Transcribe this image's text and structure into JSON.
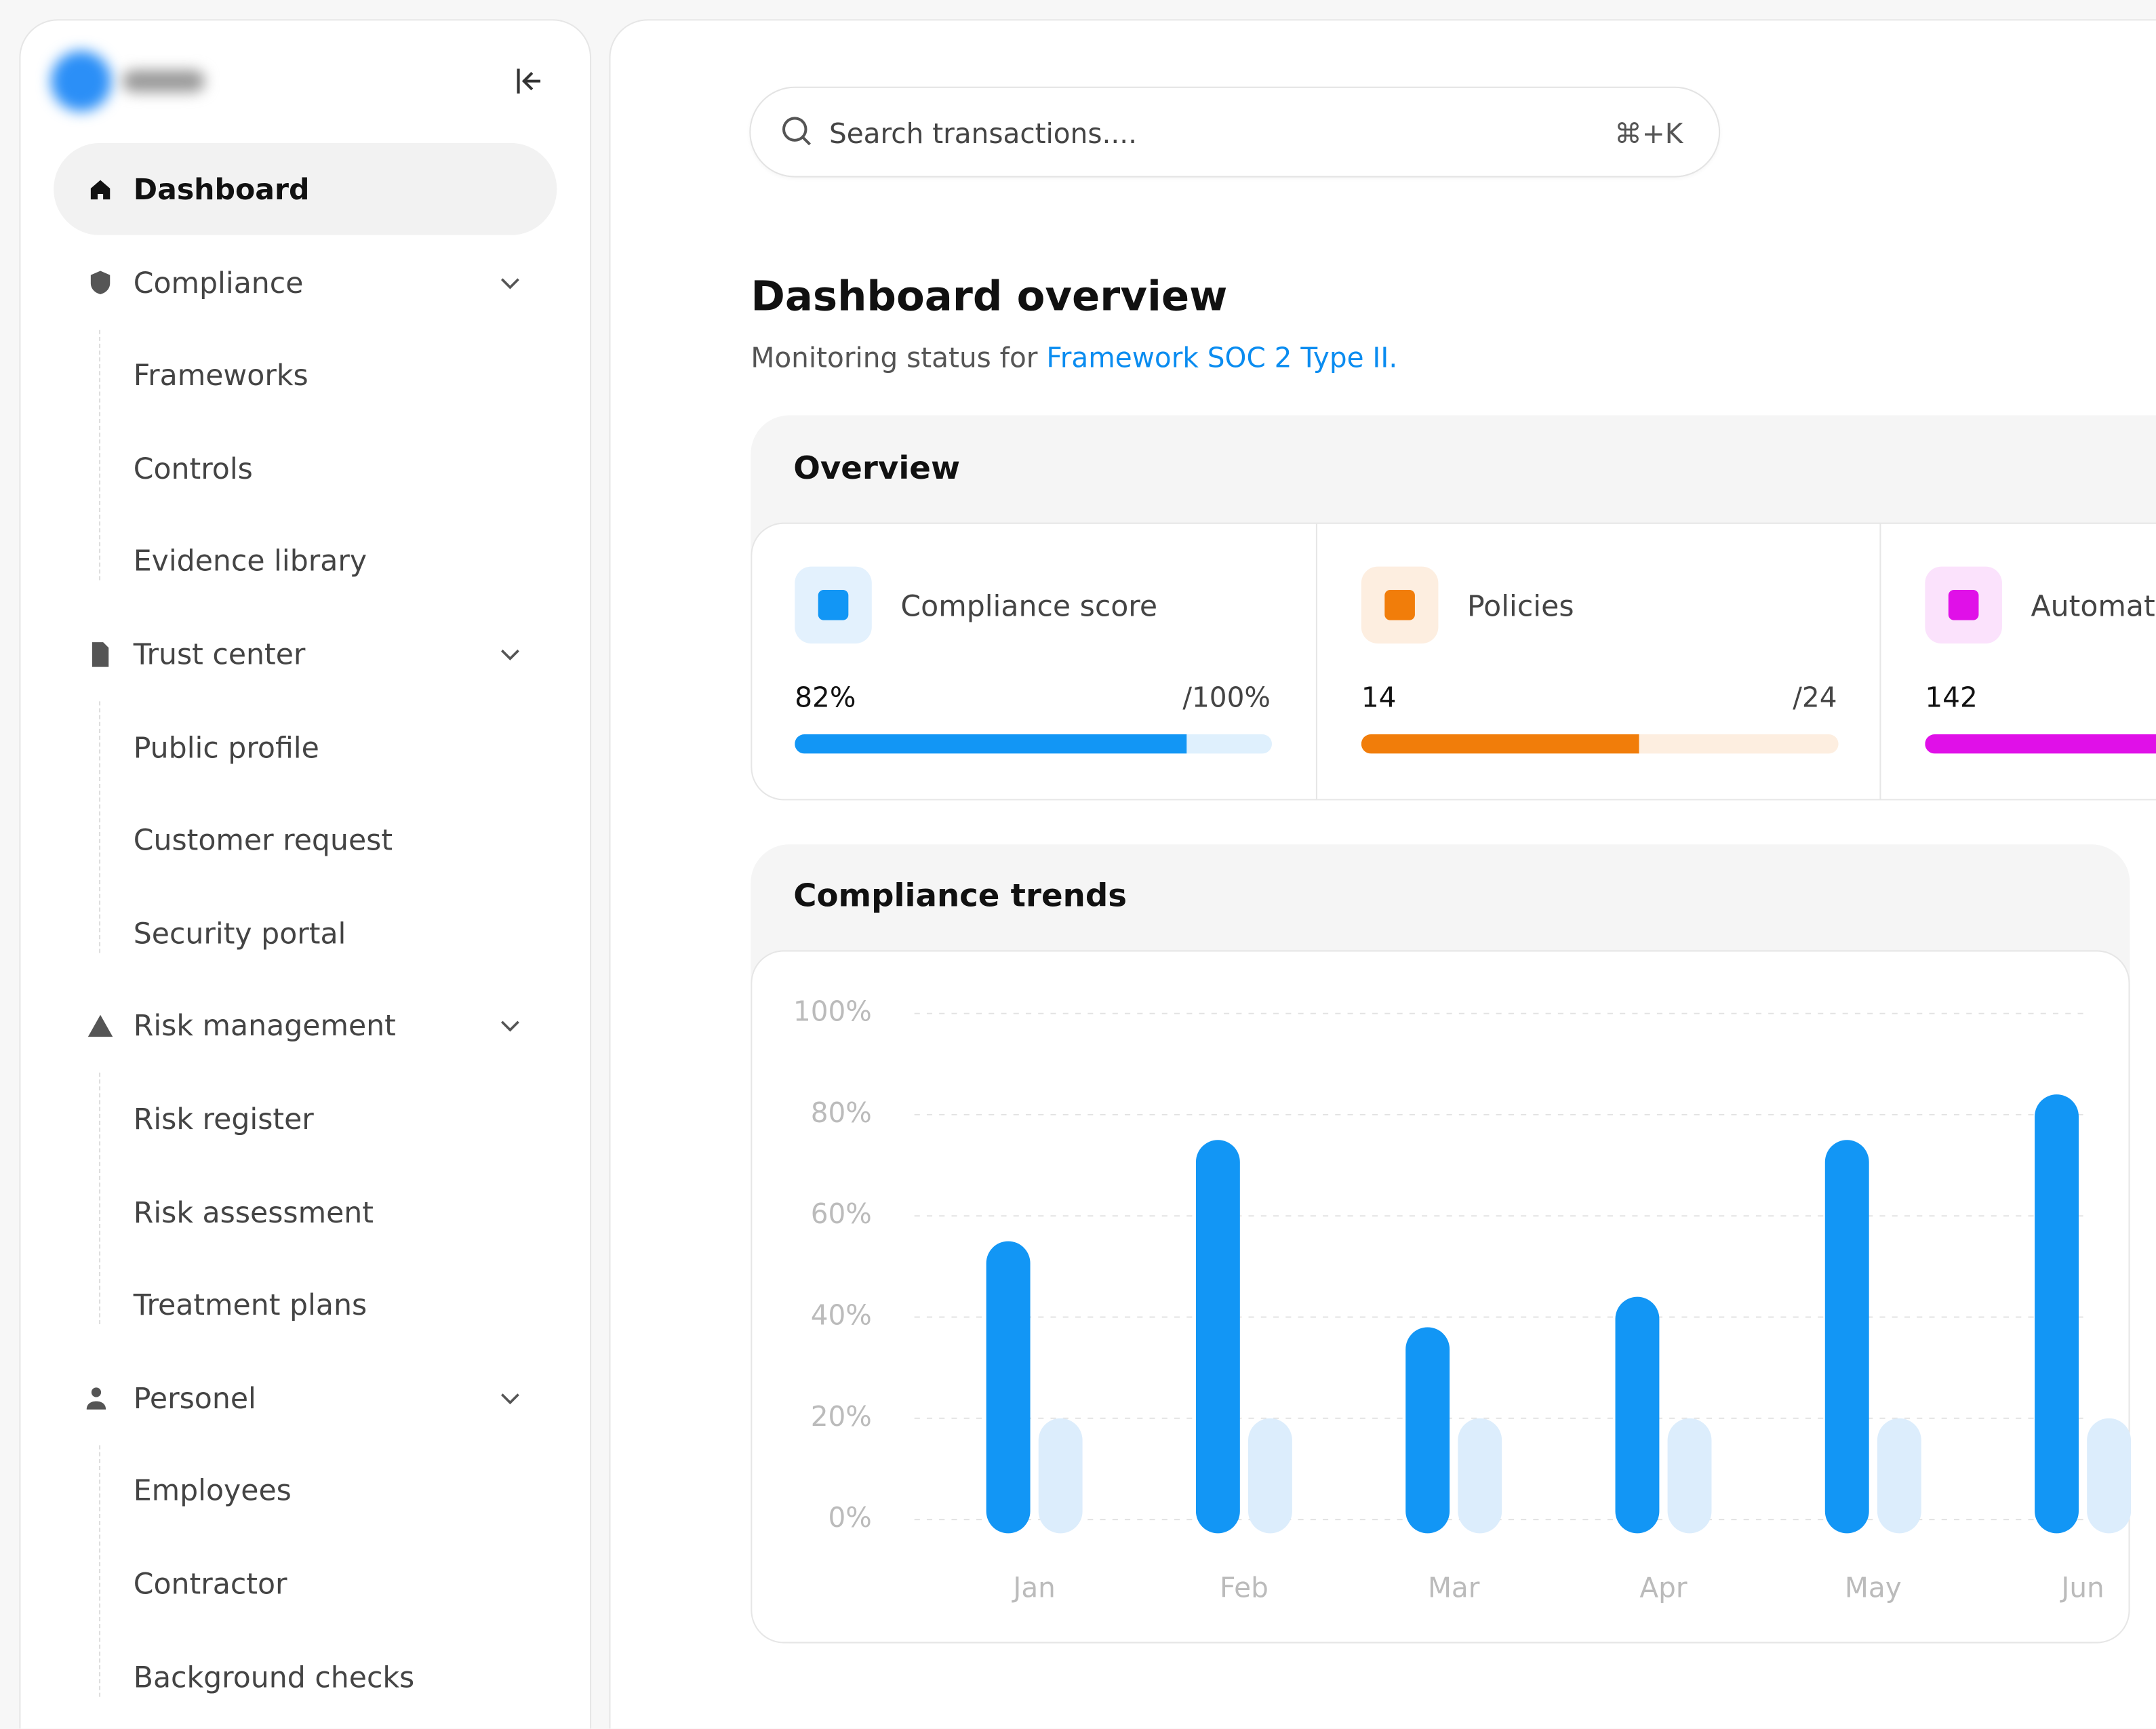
{
  "sidebar": {
    "items": [
      {
        "label": "Dashboard",
        "active": true
      },
      {
        "label": "Compliance",
        "children": [
          "Frameworks",
          "Controls",
          "Evidence library"
        ]
      },
      {
        "label": "Trust center",
        "children": [
          "Public profile",
          "Customer request",
          "Security portal"
        ]
      },
      {
        "label": "Risk management",
        "children": [
          "Risk register",
          "Risk assessment",
          "Treatment plans"
        ]
      },
      {
        "label": "Personel",
        "children": [
          "Employees",
          "Contractor",
          "Background checks"
        ]
      }
    ]
  },
  "search": {
    "placeholder": "Search transactions....",
    "shortcut": "⌘+K"
  },
  "header": {
    "title": "Dashboard overview",
    "subtitle": "Monitoring status for",
    "link": "Framework SOC 2 Type II."
  },
  "overview": {
    "title": "Overview",
    "cards": [
      {
        "title": "Compliance score",
        "value": 82,
        "value_label": "82%",
        "max": 100,
        "max_label": "/100%",
        "color": "#1296f5",
        "track": "#dff0fd",
        "icon_bg": "#e3f1fd"
      },
      {
        "title": "Policies",
        "value": 14,
        "max": 24,
        "max_label": "/24",
        "color": "#f17d0a",
        "track": "#fdeee0",
        "icon_bg": "#fdeee0"
      },
      {
        "title": "Automations",
        "value": 142,
        "color": "#e010e8",
        "track": "#fbe2fc",
        "icon_bg": "#fbe2fc"
      }
    ]
  },
  "chart": {
    "type": "bar",
    "title": "Compliance trends",
    "categories": [
      "Jan",
      "Feb",
      "Mar",
      "Apr",
      "May",
      "Jun"
    ],
    "series": [
      {
        "color": "#1296f5",
        "values": [
          55,
          75,
          38,
          44,
          75,
          84
        ]
      },
      {
        "color": "#dcedfc",
        "values": [
          20,
          20,
          20,
          20,
          20,
          20
        ]
      }
    ],
    "ylim": [
      0,
      100
    ],
    "yticks": [
      {
        "value": 0,
        "label": "0%"
      },
      {
        "value": 20,
        "label": "20%"
      },
      {
        "value": 40,
        "label": "40%"
      },
      {
        "value": 60,
        "label": "60%"
      },
      {
        "value": 80,
        "label": "80%"
      },
      {
        "value": 100,
        "label": "100%"
      }
    ],
    "grid": true
  }
}
